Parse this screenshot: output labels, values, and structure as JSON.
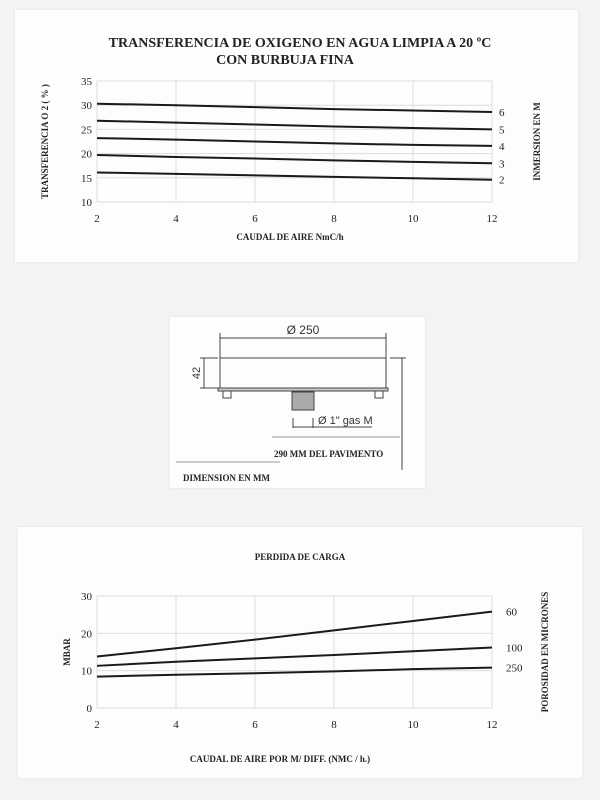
{
  "chart_data": [
    {
      "type": "line",
      "title": "TRANSFERENCIA DE OXIGENO EN AGUA LIMPIA A 20 ºC",
      "subtitle": "CON BURBUJA FINA",
      "xlabel": "CAUDAL DE AIRE  NmC/h",
      "ylabel": "TRANSFERENCIA  O 2 ( % )",
      "right_label": "INMERSION EN  M",
      "xlim": [
        2,
        12
      ],
      "ylim": [
        10,
        35
      ],
      "xticks": [
        "2",
        "4",
        "6",
        "8",
        "10",
        "12"
      ],
      "yticks": [
        "10",
        "15",
        "20",
        "25",
        "30",
        "35"
      ],
      "grid": true,
      "x": [
        2,
        4,
        6,
        8,
        10,
        12
      ],
      "series": [
        {
          "name": "6",
          "values": [
            30.3,
            30.0,
            29.6,
            29.2,
            28.9,
            28.6
          ]
        },
        {
          "name": "5",
          "values": [
            26.8,
            26.4,
            26.0,
            25.6,
            25.3,
            25.0
          ]
        },
        {
          "name": "4",
          "values": [
            23.2,
            22.9,
            22.5,
            22.1,
            21.8,
            21.6
          ]
        },
        {
          "name": "3",
          "values": [
            19.7,
            19.3,
            19.0,
            18.6,
            18.3,
            18.0
          ]
        },
        {
          "name": "2",
          "values": [
            16.1,
            15.8,
            15.5,
            15.2,
            14.9,
            14.6
          ]
        }
      ]
    },
    {
      "type": "line",
      "title": "PERDIDA DE CARGA",
      "xlabel": "CAUDAL DE AIRE  POR  M/ DIFF.  (NMC / h.)",
      "ylabel": "MBAR",
      "right_label": "POROSIDAD EN MICRONES",
      "xlim": [
        2,
        12
      ],
      "ylim": [
        0,
        30
      ],
      "xticks": [
        "2",
        "4",
        "6",
        "8",
        "10",
        "12"
      ],
      "yticks": [
        "0",
        "10",
        "20",
        "30"
      ],
      "grid": true,
      "x": [
        2,
        4,
        6,
        8,
        10,
        12
      ],
      "series": [
        {
          "name": "60",
          "values": [
            13.8,
            16.0,
            18.3,
            20.8,
            23.3,
            25.8
          ]
        },
        {
          "name": "100",
          "values": [
            11.3,
            12.4,
            13.3,
            14.2,
            15.2,
            16.2
          ]
        },
        {
          "name": "250",
          "values": [
            8.4,
            8.9,
            9.3,
            9.8,
            10.4,
            10.8
          ]
        }
      ]
    }
  ],
  "diagram": {
    "diameter": "Ø 250",
    "height": "42",
    "thread": "Ø 1\" gas M",
    "floor": "290   MM DEL PAVIMENTO",
    "units": "DIMENSION EN MM"
  }
}
